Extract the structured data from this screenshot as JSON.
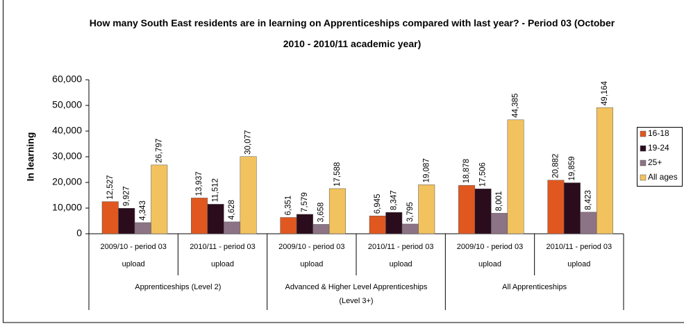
{
  "chart_data": {
    "type": "bar",
    "title": "How many South East residents are in learning on Apprenticeships compared with last year? - Period 03 (October 2010 - 2010/11 academic year)",
    "y_label": "In learning",
    "categories": [
      "2009/10 - period 03 upload",
      "2010/11 - period 03 upload",
      "2009/10 - period 03 upload",
      "2010/11 - period 03 upload",
      "2009/10 - period 03 upload",
      "2010/11 - period 03 upload"
    ],
    "groups": [
      {
        "label": "Apprenticeships (Level 2)",
        "size": 2
      },
      {
        "label": "Advanced & Higher Level Apprenticeships (Level 3+)",
        "size": 2
      },
      {
        "label": "All Apprenticeships",
        "size": 2
      }
    ],
    "series": [
      {
        "name": "16-18",
        "color": "#e0581f",
        "values": [
          12527,
          13937,
          6351,
          6945,
          18878,
          20882
        ],
        "value_labels": [
          "12,527",
          "13,937",
          "6,351",
          "6,945",
          "18,878",
          "20,882"
        ]
      },
      {
        "name": "19-24",
        "color": "#2b0c1c",
        "values": [
          9927,
          11512,
          7579,
          8347,
          17506,
          19859
        ],
        "value_labels": [
          "9,927",
          "11,512",
          "7,579",
          "8,347",
          "17,506",
          "19,859"
        ]
      },
      {
        "name": "25+",
        "color": "#8c7385",
        "values": [
          4343,
          4628,
          3658,
          3795,
          8001,
          8423
        ],
        "value_labels": [
          "4,343",
          "4,628",
          "3,658",
          "3,795",
          "8,001",
          "8,423"
        ]
      },
      {
        "name": "All ages",
        "color": "#f2c25e",
        "values": [
          26797,
          30077,
          17588,
          19087,
          44385,
          49164
        ],
        "value_labels": [
          "26,797",
          "30,077",
          "17,588",
          "19,087",
          "44,385",
          "49,164"
        ]
      }
    ],
    "ylim": [
      0,
      60000
    ],
    "yticks": [
      0,
      {
        "value": 10000,
        "label": "10,000"
      },
      {
        "value": 20000,
        "label": "20,000"
      },
      {
        "value": 30000,
        "label": "30,000"
      },
      {
        "value": 40000,
        "label": "40,000"
      },
      {
        "value": 50000,
        "label": "50,000"
      },
      {
        "value": 60000,
        "label": "60,000"
      }
    ],
    "legend": "right"
  }
}
